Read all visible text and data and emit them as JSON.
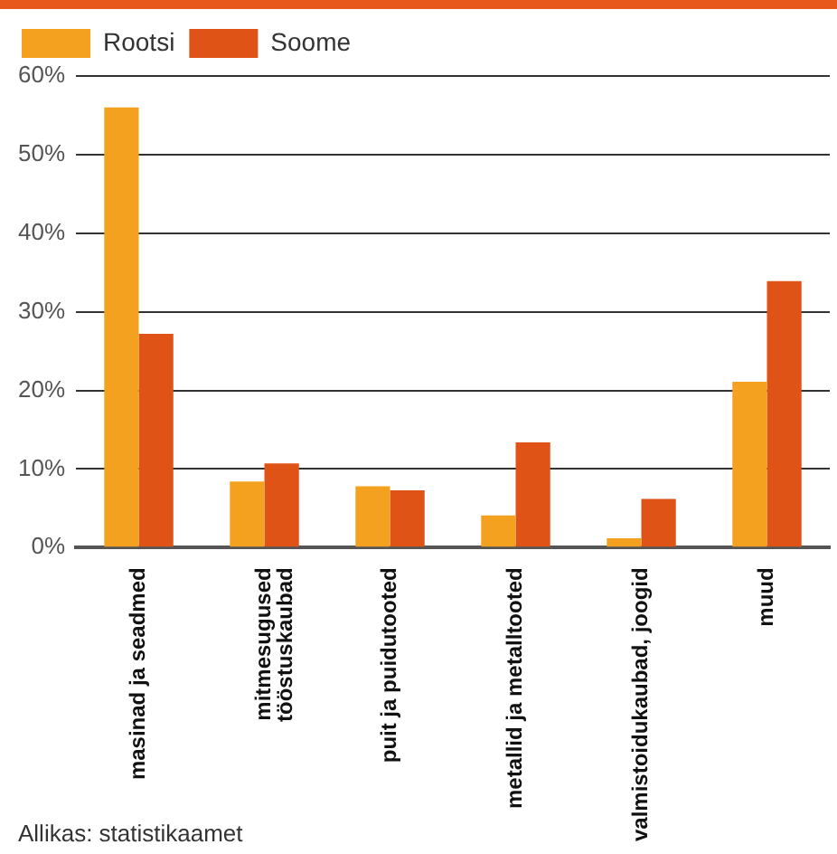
{
  "chart_data": {
    "type": "bar",
    "categories": [
      "masinad ja seadmed",
      "mitmesugused\ntööstuskaubad",
      "puit ja puidutooted",
      "metallid ja metalltooted",
      "valmistoidukaubad, joogid",
      "muud"
    ],
    "series": [
      {
        "name": "Rootsi",
        "color": "#f4a11f",
        "values": [
          56,
          8.4,
          7.8,
          4.1,
          1.2,
          21.1
        ]
      },
      {
        "name": "Soome",
        "color": "#e05316",
        "values": [
          27.2,
          10.7,
          7.3,
          13.4,
          6.2,
          33.9
        ]
      }
    ],
    "ylim": [
      0,
      60
    ],
    "yticks": [
      {
        "value": 0,
        "label": "0%"
      },
      {
        "value": 10,
        "label": "10%"
      },
      {
        "value": 20,
        "label": "20%"
      },
      {
        "value": 30,
        "label": "30%"
      },
      {
        "value": 40,
        "label": "40%"
      },
      {
        "value": 50,
        "label": "50%"
      },
      {
        "value": 60,
        "label": "60%"
      }
    ],
    "grid": "y",
    "legend": "top left",
    "annotations": [
      "Allikas: statistikaamet"
    ]
  }
}
